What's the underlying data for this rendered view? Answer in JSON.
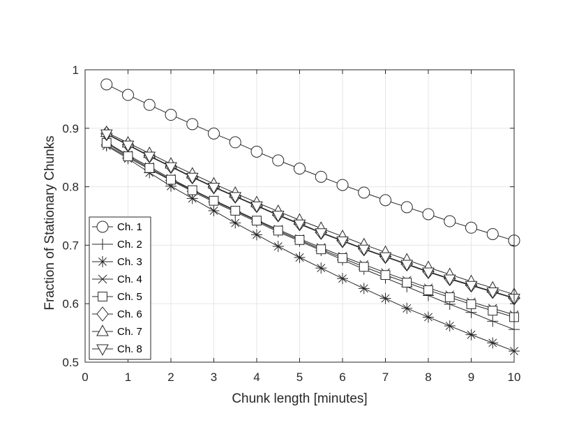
{
  "chart_data": {
    "type": "line",
    "xlabel": "Chunk length [minutes]",
    "ylabel": "Fraction of Stationary Chunks",
    "xlim": [
      0,
      10
    ],
    "ylim": [
      0.5,
      1
    ],
    "xticks": [
      "0",
      "1",
      "2",
      "3",
      "4",
      "5",
      "6",
      "7",
      "8",
      "9",
      "10"
    ],
    "yticks": [
      "0.5",
      "0.6",
      "0.7",
      "0.8",
      "0.9",
      "1"
    ],
    "grid": true,
    "legend_position": "bottom-left",
    "line_color": "#262626",
    "x": [
      0.5,
      1,
      1.5,
      2,
      2.5,
      3,
      3.5,
      4,
      4.5,
      5,
      5.5,
      6,
      6.5,
      7,
      7.5,
      8,
      8.5,
      9,
      9.5,
      10
    ],
    "series": [
      {
        "name": "Ch. 1",
        "marker": "circle",
        "values": [
          0.975,
          0.957,
          0.94,
          0.923,
          0.907,
          0.891,
          0.876,
          0.86,
          0.845,
          0.831,
          0.817,
          0.803,
          0.79,
          0.777,
          0.765,
          0.753,
          0.741,
          0.73,
          0.719,
          0.708
        ]
      },
      {
        "name": "Ch. 2",
        "marker": "plus",
        "values": [
          0.872,
          0.85,
          0.83,
          0.811,
          0.792,
          0.774,
          0.757,
          0.74,
          0.723,
          0.707,
          0.691,
          0.675,
          0.659,
          0.644,
          0.629,
          0.614,
          0.599,
          0.585,
          0.57,
          0.556
        ]
      },
      {
        "name": "Ch. 3",
        "marker": "asterisk",
        "values": [
          0.87,
          0.848,
          0.824,
          0.801,
          0.78,
          0.759,
          0.738,
          0.718,
          0.698,
          0.679,
          0.661,
          0.643,
          0.626,
          0.609,
          0.592,
          0.577,
          0.562,
          0.547,
          0.533,
          0.519
        ]
      },
      {
        "name": "Ch. 4",
        "marker": "cross",
        "values": [
          0.876,
          0.854,
          0.834,
          0.814,
          0.795,
          0.777,
          0.76,
          0.743,
          0.727,
          0.711,
          0.696,
          0.681,
          0.667,
          0.653,
          0.64,
          0.627,
          0.615,
          0.603,
          0.592,
          0.581
        ]
      },
      {
        "name": "Ch. 5",
        "marker": "square",
        "values": [
          0.875,
          0.852,
          0.832,
          0.812,
          0.794,
          0.776,
          0.759,
          0.742,
          0.725,
          0.709,
          0.693,
          0.678,
          0.663,
          0.649,
          0.636,
          0.623,
          0.611,
          0.599,
          0.588,
          0.577
        ]
      },
      {
        "name": "Ch. 6",
        "marker": "diamond",
        "values": [
          0.891,
          0.872,
          0.853,
          0.835,
          0.817,
          0.8,
          0.784,
          0.768,
          0.752,
          0.737,
          0.722,
          0.708,
          0.694,
          0.681,
          0.668,
          0.655,
          0.643,
          0.632,
          0.621,
          0.61
        ]
      },
      {
        "name": "Ch. 7",
        "marker": "triangle-up",
        "values": [
          0.893,
          0.875,
          0.857,
          0.839,
          0.822,
          0.805,
          0.789,
          0.773,
          0.758,
          0.743,
          0.729,
          0.715,
          0.701,
          0.688,
          0.675,
          0.662,
          0.65,
          0.638,
          0.627,
          0.616
        ]
      },
      {
        "name": "Ch. 8",
        "marker": "triangle-down",
        "values": [
          0.89,
          0.871,
          0.852,
          0.834,
          0.816,
          0.799,
          0.783,
          0.767,
          0.751,
          0.736,
          0.721,
          0.707,
          0.693,
          0.68,
          0.667,
          0.654,
          0.642,
          0.631,
          0.62,
          0.609
        ]
      }
    ]
  }
}
